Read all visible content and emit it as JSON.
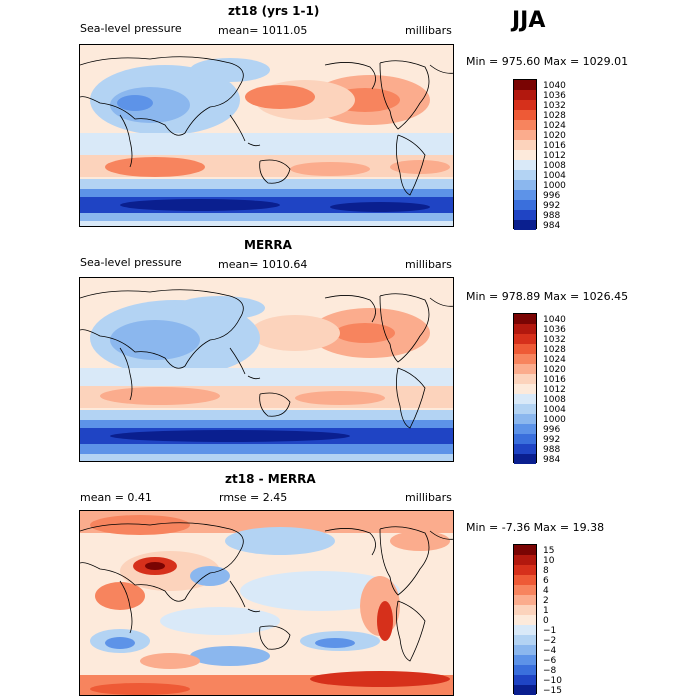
{
  "season": "JJA",
  "panels": [
    {
      "title": "zt18 (yrs 1-1)",
      "left_label": "Sea-level pressure",
      "center_label": "mean= 1011.05",
      "right_label": "millibars",
      "minmax": "Min = 975.60 Max = 1029.01",
      "colorbar_labels": [
        "1040",
        "1036",
        "1032",
        "1028",
        "1024",
        "1020",
        "1016",
        "1012",
        "1008",
        "1004",
        "1000",
        "996",
        "992",
        "988",
        "984"
      ]
    },
    {
      "title": "MERRA",
      "left_label": "Sea-level pressure",
      "center_label": "mean= 1010.64",
      "right_label": "millibars",
      "minmax": "Min = 978.89 Max = 1026.45",
      "colorbar_labels": [
        "1040",
        "1036",
        "1032",
        "1028",
        "1024",
        "1020",
        "1016",
        "1012",
        "1008",
        "1004",
        "1000",
        "996",
        "992",
        "988",
        "984"
      ]
    },
    {
      "title": "zt18 - MERRA",
      "left_label": "mean =    0.41",
      "center_label": "rmse =    2.45",
      "right_label": "millibars",
      "minmax": "Min =  -7.36 Max =   19.38",
      "colorbar_labels": [
        "15",
        "10",
        "8",
        "6",
        "4",
        "2",
        "1",
        "0",
        "−1",
        "−2",
        "−4",
        "−6",
        "−8",
        "−10",
        "−15"
      ]
    }
  ],
  "colors": {
    "abs_scale": [
      "#7a0403",
      "#b2180e",
      "#d6301b",
      "#ee5a36",
      "#f7845e",
      "#fbac8d",
      "#fcd3bc",
      "#fdeadb",
      "#d9e9f8",
      "#b3d3f3",
      "#8bb7ee",
      "#5d93e8",
      "#3a6fdc",
      "#1f44c4",
      "#0a1f8f"
    ],
    "diff_scale": [
      "#7a0403",
      "#b2180e",
      "#d6301b",
      "#ee5a36",
      "#f7845e",
      "#fbac8d",
      "#fcd3bc",
      "#fdeadb",
      "#d9e9f8",
      "#b3d3f3",
      "#8bb7ee",
      "#5d93e8",
      "#3a6fdc",
      "#1f44c4",
      "#0a1f8f"
    ]
  }
}
